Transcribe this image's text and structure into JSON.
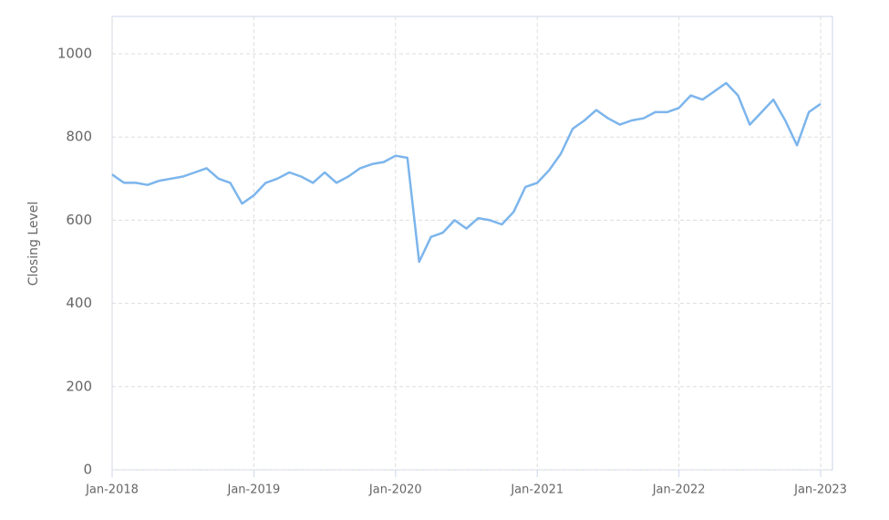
{
  "chart_data": {
    "type": "line",
    "y_label": "Closing Level",
    "x": [
      "2018-01",
      "2018-02",
      "2018-03",
      "2018-04",
      "2018-05",
      "2018-06",
      "2018-07",
      "2018-08",
      "2018-09",
      "2018-10",
      "2018-11",
      "2018-12",
      "2019-01",
      "2019-02",
      "2019-03",
      "2019-04",
      "2019-05",
      "2019-06",
      "2019-07",
      "2019-08",
      "2019-09",
      "2019-10",
      "2019-11",
      "2019-12",
      "2020-01",
      "2020-02",
      "2020-03",
      "2020-04",
      "2020-05",
      "2020-06",
      "2020-07",
      "2020-08",
      "2020-09",
      "2020-10",
      "2020-11",
      "2020-12",
      "2021-01",
      "2021-02",
      "2021-03",
      "2021-04",
      "2021-05",
      "2021-06",
      "2021-07",
      "2021-08",
      "2021-09",
      "2021-10",
      "2021-11",
      "2021-12",
      "2022-01",
      "2022-02",
      "2022-03",
      "2022-04",
      "2022-05",
      "2022-06",
      "2022-07",
      "2022-08",
      "2022-09",
      "2022-10",
      "2022-11",
      "2022-12",
      "2023-01"
    ],
    "series": [
      {
        "name": "Closing Level",
        "color": "#7cb5ec",
        "values": [
          710,
          690,
          690,
          685,
          695,
          700,
          705,
          715,
          725,
          700,
          690,
          640,
          660,
          690,
          700,
          715,
          705,
          690,
          715,
          690,
          705,
          725,
          735,
          740,
          755,
          750,
          500,
          560,
          570,
          600,
          580,
          605,
          600,
          590,
          620,
          680,
          690,
          720,
          760,
          820,
          840,
          865,
          845,
          830,
          840,
          845,
          860,
          860,
          870,
          900,
          890,
          910,
          930,
          900,
          830,
          860,
          890,
          840,
          780,
          860,
          880
        ]
      }
    ],
    "xlim": [
      "2018-01",
      "2023-02"
    ],
    "xticks": [
      {
        "value": "2018-01",
        "label": "Jan-2018"
      },
      {
        "value": "2019-01",
        "label": "Jan-2019"
      },
      {
        "value": "2020-01",
        "label": "Jan-2020"
      },
      {
        "value": "2021-01",
        "label": "Jan-2021"
      },
      {
        "value": "2022-01",
        "label": "Jan-2022"
      },
      {
        "value": "2023-01",
        "label": "Jan-2023"
      }
    ],
    "ylim": [
      0,
      1090
    ],
    "yticks": [
      0,
      200,
      400,
      600,
      800,
      1000
    ],
    "grid": true
  }
}
